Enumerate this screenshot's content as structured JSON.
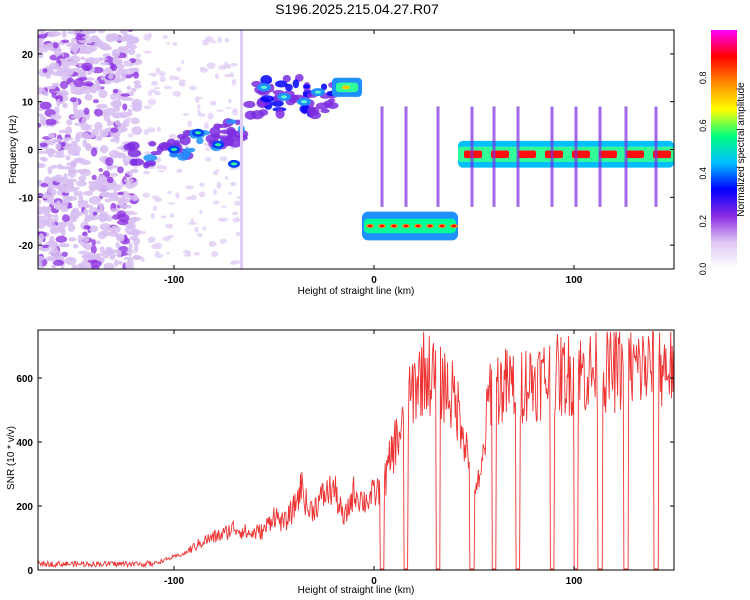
{
  "title": "S196.2025.215.04.27.R07",
  "chart_data": [
    {
      "type": "heatmap",
      "title": "",
      "xlabel": "Height of straight line (km)",
      "ylabel": "Frequency (Hz)",
      "xlim": [
        -168,
        150
      ],
      "ylim": [
        -25,
        25
      ],
      "xticks": [
        -100,
        0,
        100
      ],
      "yticks": [
        -20,
        -10,
        0,
        10,
        20
      ],
      "colorbar": {
        "label": "Normalized spectral amplitude",
        "range": [
          0.0,
          1.0
        ],
        "ticks": [
          "0.0",
          "0.2",
          "0.4",
          "0.6",
          "0.8"
        ],
        "colormap": [
          "#ffffff",
          "#e0c8f4",
          "#8a2be2",
          "#0000ff",
          "#00bfff",
          "#00ff7f",
          "#ffff00",
          "#ff8c00",
          "#ff0000",
          "#ff00ff"
        ]
      },
      "segments": [
        {
          "x_range": [
            -168,
            -123
          ],
          "freq_hz": "-25 to 25",
          "amplitude": 0.15
        },
        {
          "x_range": [
            -123,
            -65
          ],
          "freq_hz": "-2 to 5",
          "amplitude": 0.3
        },
        {
          "x_range": [
            -63,
            -20
          ],
          "freq_hz": 11,
          "amplitude": 0.3
        },
        {
          "x_range": [
            -20,
            -6
          ],
          "freq_hz": 13,
          "amplitude": 0.6
        },
        {
          "x_range": [
            -6,
            42
          ],
          "freq_hz": -16,
          "amplitude": 0.8
        },
        {
          "x_range": [
            42,
            150
          ],
          "freq_hz": -1,
          "amplitude": 0.9
        }
      ]
    },
    {
      "type": "line",
      "title": "",
      "xlabel": "Height of straight line (km)",
      "ylabel": "SNR (10 * v/v)",
      "xlim": [
        -168,
        150
      ],
      "ylim": [
        0,
        750
      ],
      "xticks": [
        -100,
        0,
        100
      ],
      "yticks": [
        0,
        200,
        400,
        600
      ],
      "color": "#ee3333",
      "series": [
        {
          "x": [
            -168,
            -150,
            -130,
            -110,
            -95,
            -85,
            -75,
            -70,
            -62,
            -55,
            -50,
            -45,
            -40,
            -36,
            -33,
            -30,
            -25,
            -20,
            -15,
            -10,
            -5,
            0,
            5,
            10,
            15,
            20,
            25,
            30,
            35,
            40,
            44,
            48,
            53,
            58,
            65,
            80,
            100,
            120,
            140,
            150
          ],
          "y": [
            15,
            15,
            15,
            20,
            50,
            90,
            110,
            130,
            110,
            120,
            170,
            140,
            190,
            260,
            180,
            190,
            230,
            250,
            150,
            240,
            210,
            230,
            260,
            380,
            450,
            560,
            610,
            590,
            570,
            520,
            460,
            300,
            250,
            560,
            560,
            580,
            600,
            610,
            620,
            630
          ],
          "dropouts_to_zero": [
            4,
            16,
            32,
            49,
            60,
            72,
            89,
            101,
            113,
            126,
            141
          ]
        }
      ]
    }
  ]
}
